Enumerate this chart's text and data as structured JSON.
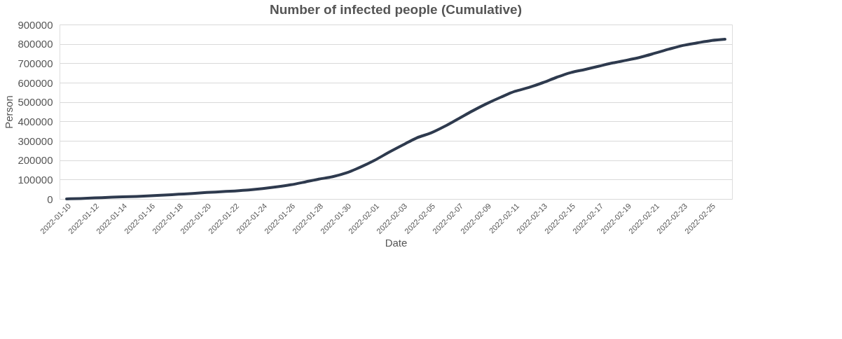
{
  "chart_data": {
    "type": "line",
    "title": "Number of infected people (Cumulative)",
    "xlabel": "Date",
    "ylabel": "Person",
    "categories": [
      "2022-01-10",
      null,
      "2022-01-12",
      null,
      "2022-01-14",
      null,
      "2022-01-16",
      null,
      "2022-01-18",
      null,
      "2022-01-20",
      null,
      "2022-01-22",
      null,
      "2022-01-24",
      null,
      "2022-01-26",
      null,
      "2022-01-28",
      null,
      "2022-01-30",
      null,
      "2022-02-01",
      null,
      "2022-02-03",
      null,
      "2022-02-05",
      null,
      "2022-02-07",
      null,
      "2022-02-09",
      null,
      "2022-02-11",
      null,
      "2022-02-13",
      null,
      "2022-02-15",
      null,
      "2022-02-17",
      null,
      "2022-02-19",
      null,
      "2022-02-21",
      null,
      "2022-02-23",
      null,
      "2022-02-25",
      null
    ],
    "series": [
      {
        "color": "#2e3a4e",
        "values": [
          0,
          2000,
          5000,
          8000,
          11000,
          13000,
          16000,
          20000,
          24000,
          28000,
          33000,
          37000,
          41000,
          46000,
          53000,
          62000,
          73000,
          87000,
          102000,
          115000,
          135000,
          165000,
          200000,
          240000,
          278000,
          315000,
          340000,
          375000,
          415000,
          455000,
          492000,
          525000,
          555000,
          575000,
          600000,
          628000,
          652000,
          668000,
          685000,
          702000,
          716000,
          732000,
          752000,
          773000,
          792000,
          805000,
          817000,
          824000
        ]
      }
    ],
    "ylim": [
      0,
      900000
    ],
    "yticks": [
      0,
      100000,
      200000,
      300000,
      400000,
      500000,
      600000,
      700000,
      800000,
      900000
    ],
    "grid": "y",
    "marker": "none",
    "line_style": "solid"
  }
}
